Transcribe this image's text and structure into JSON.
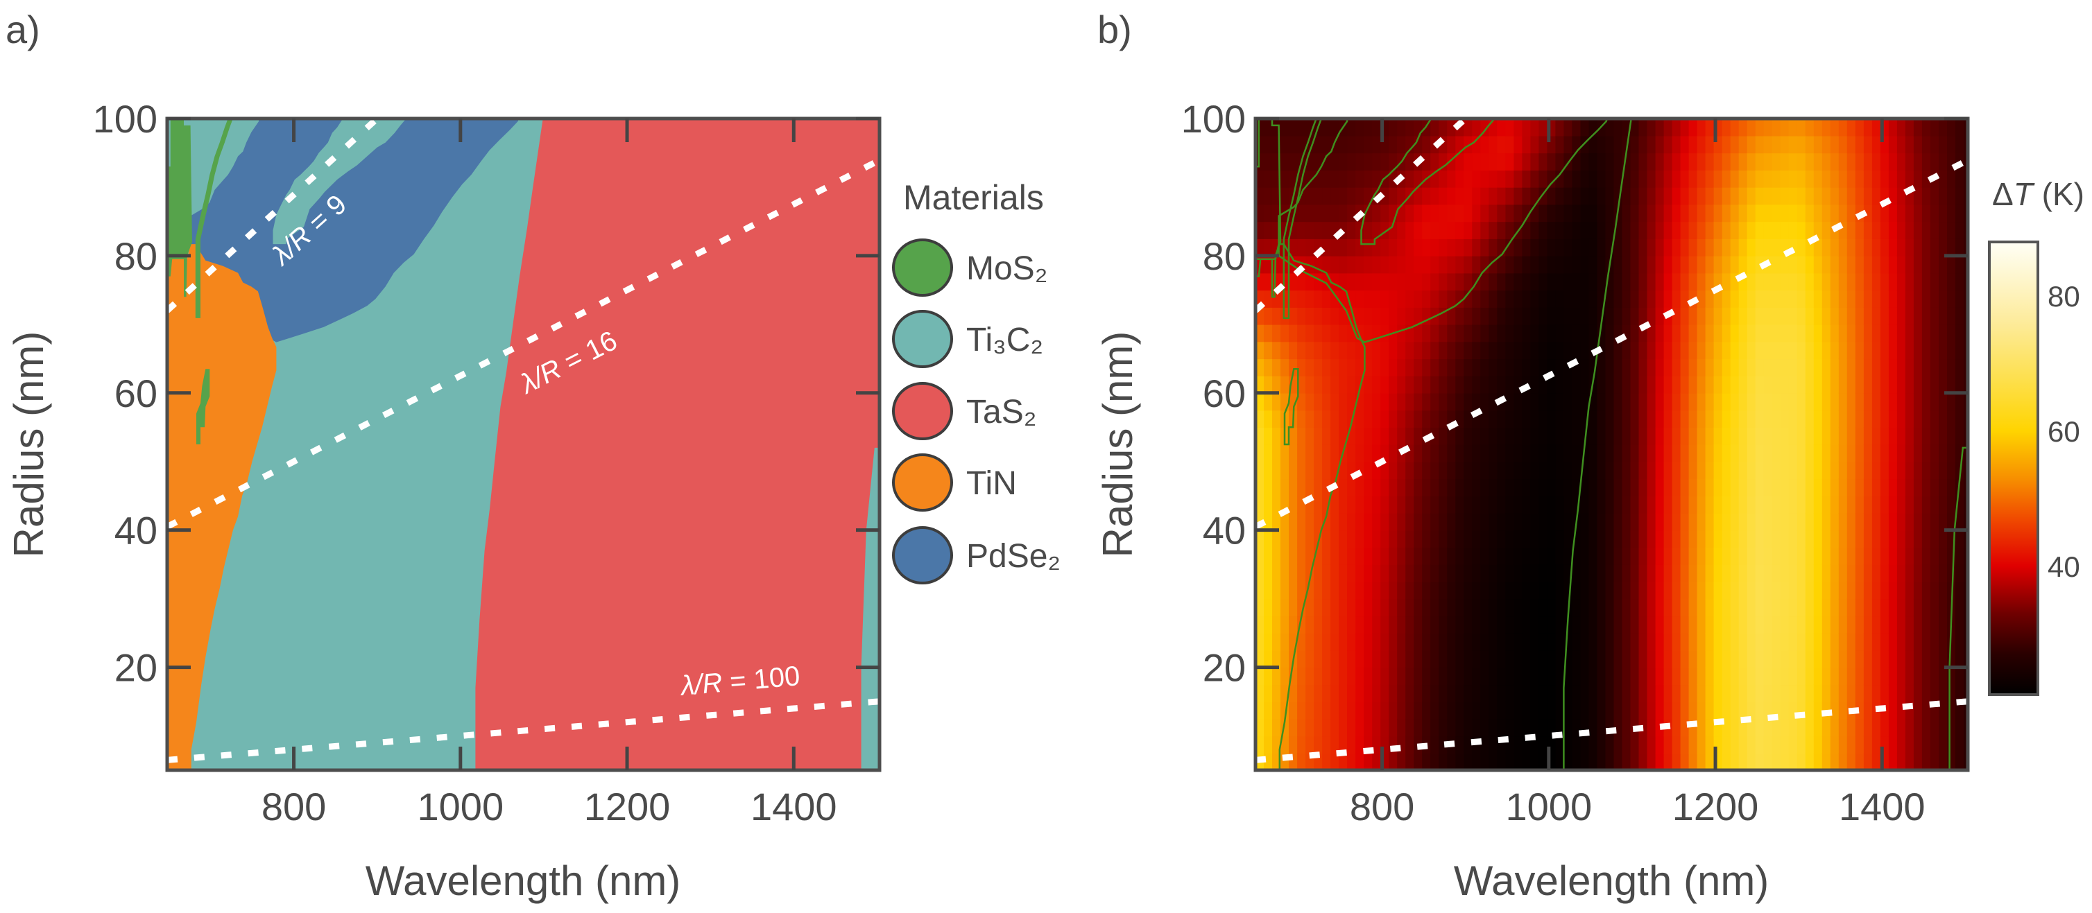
{
  "panel_labels": {
    "a": "a)",
    "b": "b)"
  },
  "chart_data": [
    {
      "panel": "a",
      "type": "heatmap",
      "subtype": "categorical material map",
      "xlabel": "Wavelength (nm)",
      "ylabel": "Radius (nm)",
      "xlim": [
        648,
        1503
      ],
      "ylim": [
        5,
        100
      ],
      "xticks": [
        800,
        1000,
        1200,
        1400
      ],
      "xtick_labels": [
        "800",
        "1000",
        "1200",
        "1400"
      ],
      "yticks": [
        20,
        40,
        60,
        80,
        100
      ],
      "ytick_labels": [
        "20",
        "40",
        "60",
        "80",
        "100"
      ],
      "legend": {
        "title": "Materials",
        "placement": "right",
        "items": [
          {
            "name": "MoS₂",
            "color": "#56a34b"
          },
          {
            "name": "Ti₃C₂",
            "color": "#72b7b1"
          },
          {
            "name": "TaS₂",
            "color": "#e45858"
          },
          {
            "name": "TiN",
            "color": "#f5861b"
          },
          {
            "name": "PdSe₂",
            "color": "#4b77a8"
          }
        ]
      },
      "regions": [
        {
          "material": "Ti₃C₂",
          "polygon": [
            [
              648,
              5
            ],
            [
              1503,
              5
            ],
            [
              1503,
              100
            ],
            [
              648,
              100
            ]
          ]
        },
        {
          "material": "TaS₂",
          "polygon": [
            [
              1099,
              100
            ],
            [
              1093,
              95
            ],
            [
              1087,
              90
            ],
            [
              1080,
              84
            ],
            [
              1071,
              77
            ],
            [
              1063,
              70
            ],
            [
              1055,
              63
            ],
            [
              1048,
              58
            ],
            [
              1041,
              50
            ],
            [
              1035,
              43
            ],
            [
              1029,
              37
            ],
            [
              1023,
              27
            ],
            [
              1018,
              17
            ],
            [
              1018,
              5
            ],
            [
              1503,
              5
            ],
            [
              1503,
              100
            ]
          ]
        },
        {
          "material": "PdSe₂",
          "polygon": [
            [
              758,
              100
            ],
            [
              758,
              99.6
            ],
            [
              749,
              98
            ],
            [
              743,
              96.5
            ],
            [
              739,
              95.2
            ],
            [
              733,
              94.5
            ],
            [
              727,
              93
            ],
            [
              721,
              91.8
            ],
            [
              715,
              91
            ],
            [
              705,
              89.6
            ],
            [
              699,
              87.8
            ],
            [
              694,
              87.1
            ],
            [
              676,
              85.8
            ],
            [
              676,
              80
            ],
            [
              700,
              78
            ],
            [
              733,
              76
            ],
            [
              757,
              72
            ],
            [
              770,
              68
            ],
            [
              779,
              67.4
            ],
            [
              795,
              68
            ],
            [
              813,
              68.7
            ],
            [
              836,
              69.6
            ],
            [
              859,
              70.9
            ],
            [
              871,
              71.6
            ],
            [
              888,
              72.7
            ],
            [
              898,
              73.7
            ],
            [
              910,
              75.5
            ],
            [
              920,
              77.5
            ],
            [
              932,
              79
            ],
            [
              944,
              80.2
            ],
            [
              956,
              82.4
            ],
            [
              968,
              84.4
            ],
            [
              978,
              86.4
            ],
            [
              990,
              88.5
            ],
            [
              1002,
              90.4
            ],
            [
              1013,
              91.8
            ],
            [
              1025,
              93.8
            ],
            [
              1035,
              95.4
            ],
            [
              1047,
              96.9
            ],
            [
              1059,
              98.3
            ],
            [
              1069,
              99.6
            ],
            [
              1070,
              100
            ]
          ]
        },
        {
          "material": "Ti₃C₂",
          "polygon": [
            [
              859,
              100
            ],
            [
              852,
              98.7
            ],
            [
              846,
              97.9
            ],
            [
              841,
              96.5
            ],
            [
              836,
              95.8
            ],
            [
              830,
              95
            ],
            [
              824,
              93.8
            ],
            [
              818,
              93
            ],
            [
              812,
              92.3
            ],
            [
              808,
              91.8
            ],
            [
              801,
              91.1
            ],
            [
              795,
              89.6
            ],
            [
              791,
              88.9
            ],
            [
              785,
              87.5
            ],
            [
              779,
              86
            ],
            [
              775,
              83.7
            ],
            [
              775,
              81.7
            ],
            [
              791,
              81.7
            ],
            [
              791,
              82.4
            ],
            [
              812,
              84.2
            ],
            [
              819,
              86.8
            ],
            [
              825,
              87.6
            ],
            [
              831,
              88.4
            ],
            [
              837,
              89.3
            ],
            [
              852,
              91.1
            ],
            [
              865,
              92.3
            ],
            [
              876,
              93.2
            ],
            [
              888,
              94.5
            ],
            [
              900,
              95.8
            ],
            [
              910,
              96.5
            ],
            [
              921,
              97.9
            ],
            [
              928,
              99
            ],
            [
              935,
              100
            ]
          ]
        },
        {
          "material": "TiN",
          "polygon": [
            [
              648,
              5
            ],
            [
              677,
              5
            ],
            [
              677,
              8
            ],
            [
              683,
              12
            ],
            [
              689,
              17.5
            ],
            [
              694,
              21.5
            ],
            [
              700,
              25.5
            ],
            [
              705,
              28.5
            ],
            [
              711,
              31.5
            ],
            [
              716,
              34.5
            ],
            [
              721,
              37
            ],
            [
              727,
              40
            ],
            [
              733,
              42
            ],
            [
              738,
              45
            ],
            [
              744,
              47
            ],
            [
              750,
              50
            ],
            [
              756,
              52.5
            ],
            [
              762,
              55
            ],
            [
              768,
              58
            ],
            [
              774,
              61
            ],
            [
              779,
              63.3
            ],
            [
              779,
              66.7
            ],
            [
              774,
              68
            ],
            [
              769,
              69.6
            ],
            [
              763,
              72.3
            ],
            [
              757,
              74.8
            ],
            [
              749,
              75.5
            ],
            [
              739,
              76.1
            ],
            [
              733,
              77.5
            ],
            [
              715,
              78.5
            ],
            [
              694,
              79.3
            ],
            [
              682,
              81.7
            ],
            [
              676,
              81.7
            ],
            [
              672,
              79.5
            ],
            [
              648,
              79.5
            ]
          ]
        },
        {
          "material": "MoS₂",
          "polygon": [
            [
              652,
              100
            ],
            [
              668,
              100
            ],
            [
              668,
              99
            ],
            [
              676,
              99
            ],
            [
              677,
              90
            ],
            [
              678,
              82
            ],
            [
              672,
              80
            ],
            [
              671,
              74
            ],
            [
              668,
              74
            ],
            [
              668,
              79.5
            ],
            [
              654,
              79.5
            ],
            [
              652,
              77
            ],
            [
              648,
              77
            ],
            [
              648,
              93
            ],
            [
              652,
              93
            ]
          ]
        },
        {
          "material": "MoS₂",
          "polygon": [
            [
              721,
              100
            ],
            [
              717,
              98.7
            ],
            [
              711,
              96.5
            ],
            [
              705,
              94.5
            ],
            [
              699,
              91.8
            ],
            [
              694,
              88.9
            ],
            [
              688,
              85.8
            ],
            [
              682,
              82.4
            ],
            [
              682,
              70.9
            ],
            [
              688,
              70.9
            ],
            [
              688,
              82.4
            ],
            [
              694,
              85.8
            ],
            [
              700,
              88.9
            ],
            [
              705,
              91.8
            ],
            [
              711,
              94.5
            ],
            [
              717,
              96.5
            ],
            [
              723,
              98.7
            ],
            [
              727,
              100
            ]
          ]
        },
        {
          "material": "MoS₂",
          "polygon": [
            [
              694,
              63.5
            ],
            [
              699,
              63.5
            ],
            [
              699,
              59.5
            ],
            [
              694,
              58
            ],
            [
              693,
              55
            ],
            [
              688,
              55
            ],
            [
              688,
              52.5
            ],
            [
              683,
              52.5
            ],
            [
              683,
              57
            ],
            [
              688,
              58.5
            ],
            [
              690,
              61
            ]
          ]
        },
        {
          "material": "Ti₃C₂",
          "polygon": [
            [
              1481,
              5
            ],
            [
              1481,
              20
            ],
            [
              1484,
              30
            ],
            [
              1487,
              40
            ],
            [
              1492,
              46
            ],
            [
              1497,
              52
            ],
            [
              1503,
              52
            ],
            [
              1503,
              5
            ]
          ]
        }
      ],
      "reference_lines": [
        {
          "ratio": 9,
          "label_lhs": "λ/R",
          "label_rhs": " = 9"
        },
        {
          "ratio": 16,
          "label_lhs": "λ/R",
          "label_rhs": " = 16"
        },
        {
          "ratio": 100,
          "label_lhs": "λ/R",
          "label_rhs": " = 100"
        }
      ]
    },
    {
      "panel": "b",
      "type": "heatmap",
      "xlabel": "Wavelength (nm)",
      "ylabel": "Radius (nm)",
      "xlim": [
        648,
        1503
      ],
      "ylim": [
        5,
        100
      ],
      "xticks": [
        800,
        1000,
        1200,
        1400
      ],
      "xtick_labels": [
        "800",
        "1000",
        "1200",
        "1400"
      ],
      "yticks": [
        20,
        40,
        60,
        80,
        100
      ],
      "ytick_labels": [
        "20",
        "40",
        "60",
        "80",
        "100"
      ],
      "x": [
        650,
        700,
        750,
        800,
        850,
        900,
        950,
        1000,
        1050,
        1100,
        1150,
        1200,
        1250,
        1300,
        1350,
        1400,
        1450,
        1500
      ],
      "y": [
        5,
        30,
        55,
        65,
        75,
        85,
        95,
        100
      ],
      "z": [
        [
          62,
          48,
          43,
          37,
          29,
          24,
          22,
          21,
          23,
          32,
          44,
          60,
          67,
          65,
          52,
          42,
          33,
          27
        ],
        [
          64,
          50,
          43,
          38,
          30,
          25,
          22,
          21,
          23,
          32,
          45,
          60,
          68,
          66,
          53,
          42,
          33,
          27
        ],
        [
          64,
          50,
          43,
          40,
          33,
          27,
          24,
          22,
          23,
          31,
          44,
          58,
          67,
          66,
          54,
          43,
          34,
          28
        ],
        [
          56,
          47,
          43,
          41,
          36,
          29,
          25,
          22,
          23,
          31,
          43,
          56,
          66,
          66,
          54,
          43,
          34,
          28
        ],
        [
          42,
          42,
          40,
          40,
          39,
          34,
          27,
          23,
          23,
          30,
          42,
          54,
          64,
          64,
          53,
          43,
          34,
          28
        ],
        [
          32,
          33,
          33,
          36,
          41,
          41,
          33,
          26,
          23,
          30,
          40,
          50,
          60,
          60,
          52,
          42,
          34,
          28
        ],
        [
          30,
          30,
          30,
          31,
          34,
          40,
          42,
          33,
          25,
          29,
          38,
          46,
          54,
          56,
          50,
          41,
          33,
          28
        ],
        [
          29,
          29,
          29,
          30,
          32,
          36,
          40,
          36,
          27,
          28,
          36,
          44,
          50,
          52,
          48,
          40,
          32,
          28
        ]
      ],
      "colorbar": {
        "title_prefix": "Δ",
        "title_var": "T",
        "title_unit": " (K)",
        "range": [
          21,
          88
        ],
        "ticks": [
          40,
          60,
          80
        ],
        "tick_labels": [
          "40",
          "60",
          "80"
        ],
        "placement": "right"
      },
      "colormap": [
        [
          21,
          "#000000"
        ],
        [
          27,
          "#2a0000"
        ],
        [
          33,
          "#700000"
        ],
        [
          40,
          "#e00000"
        ],
        [
          47,
          "#f04a00"
        ],
        [
          53,
          "#f79000"
        ],
        [
          60,
          "#ffd400"
        ],
        [
          68,
          "#fde050"
        ],
        [
          76,
          "#fdeb9a"
        ],
        [
          88,
          "#fffff6"
        ]
      ],
      "contour_color": "#3f8f1f",
      "contours": "material boundaries of panel a",
      "reference_lines": [
        {
          "ratio": 9
        },
        {
          "ratio": 16
        },
        {
          "ratio": 100
        }
      ]
    }
  ]
}
